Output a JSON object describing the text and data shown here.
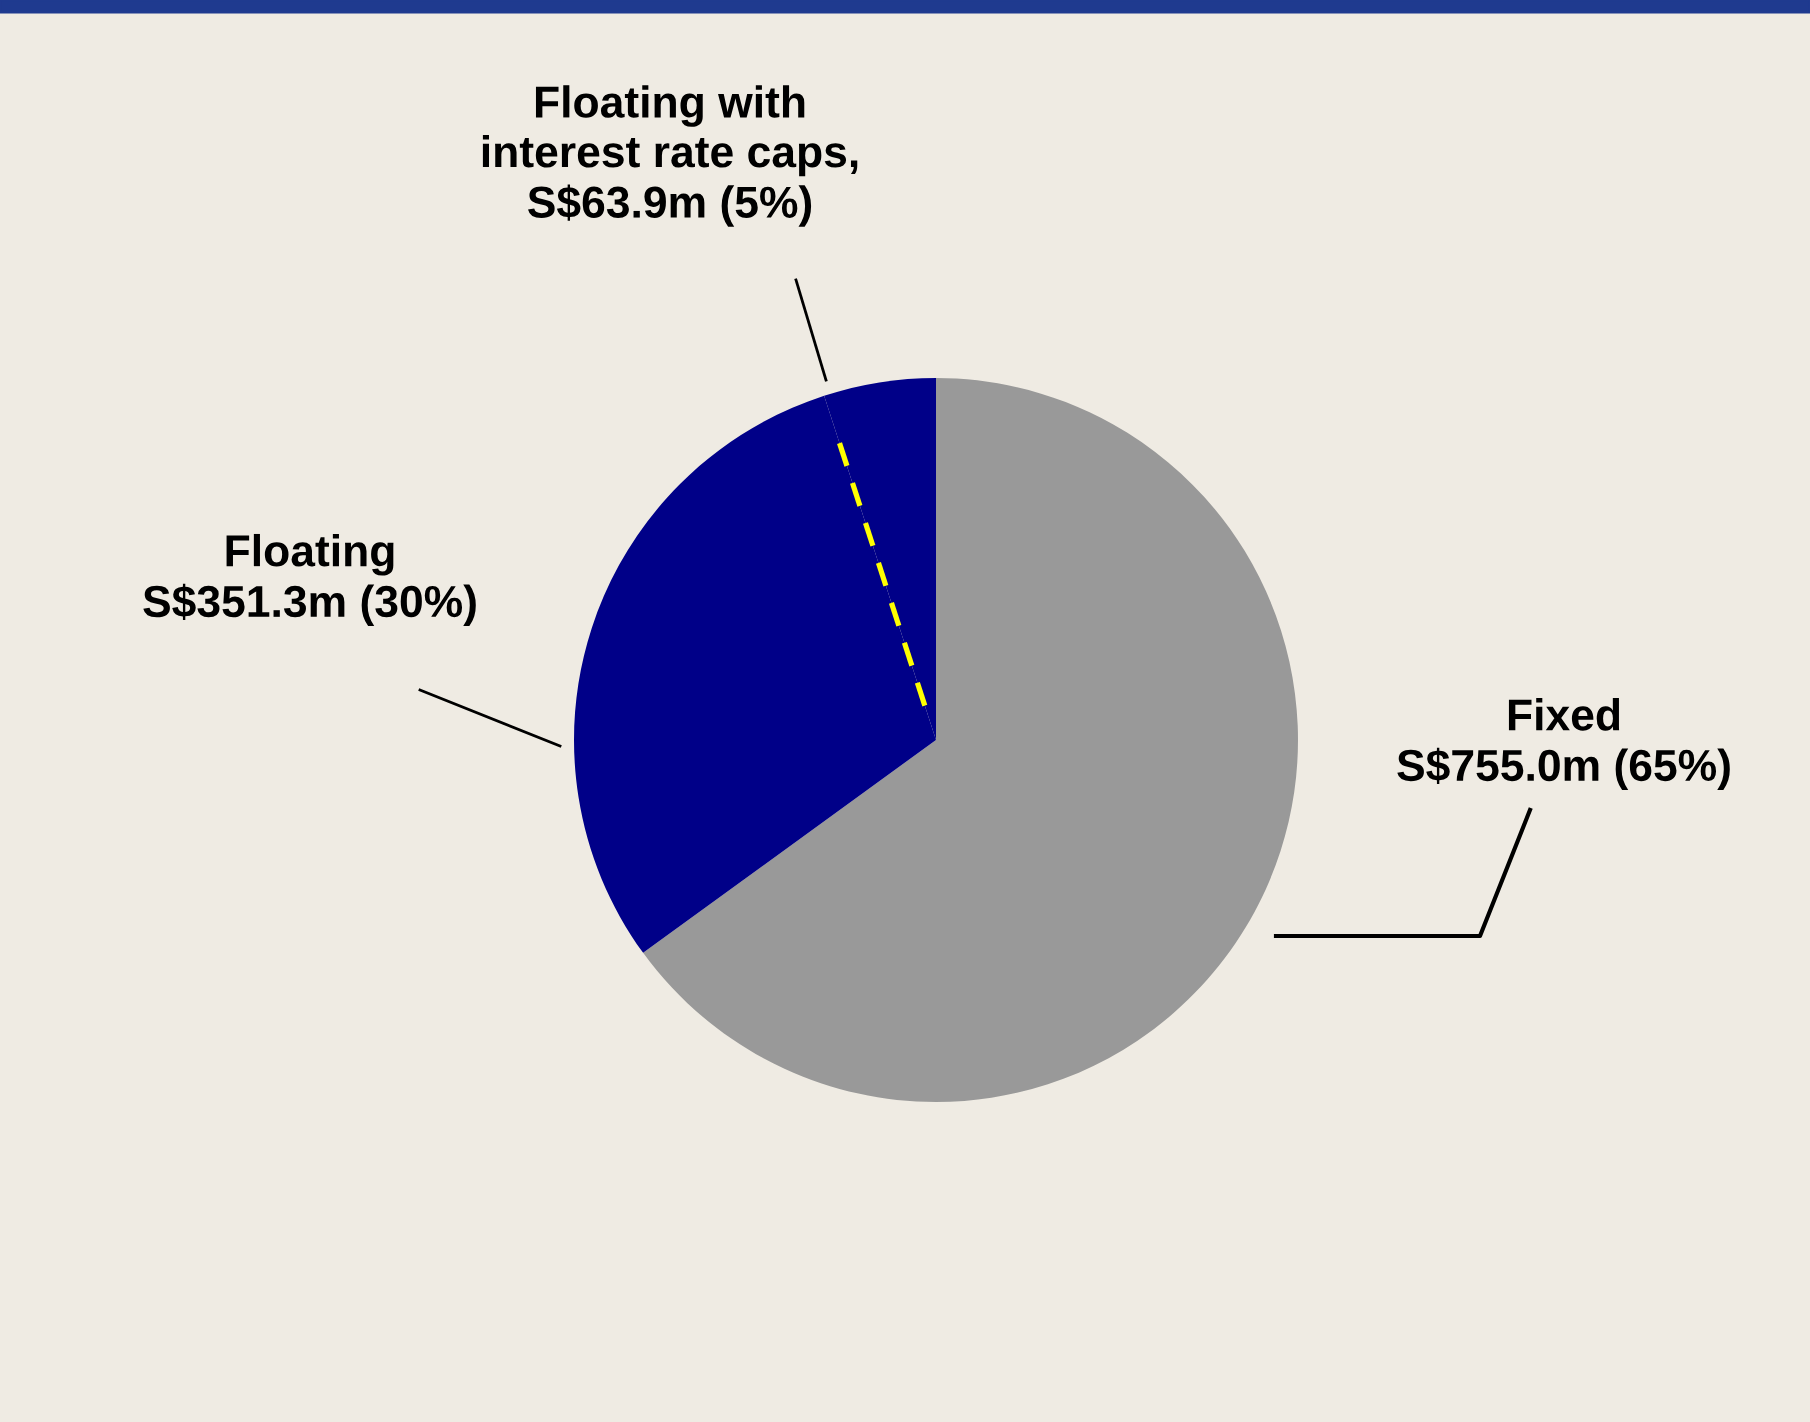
{
  "chart_data": {
    "type": "pie",
    "categories": [
      "Fixed\nS$755.0m (65%)",
      "Floating\nS$351.3m (30%)",
      "Floating with\ninterest rate caps,\nS$63.9m (5%)"
    ],
    "values": [
      65,
      30,
      5
    ],
    "colors": [
      "#999999",
      "#000088",
      "#000088"
    ],
    "legend": false
  }
}
